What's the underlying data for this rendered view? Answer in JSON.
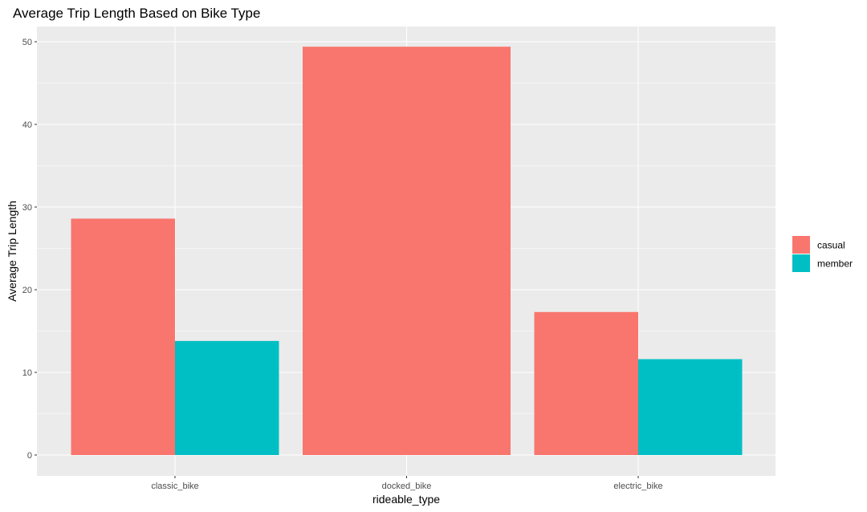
{
  "chart_data": {
    "type": "bar",
    "title": "Average Trip Length Based on Bike Type",
    "xlabel": "rideable_type",
    "ylabel": "Average Trip Length",
    "categories": [
      "classic_bike",
      "docked_bike",
      "electric_bike"
    ],
    "series": [
      {
        "name": "casual",
        "values": [
          28.6,
          49.4,
          17.3
        ],
        "color": "#F8766D"
      },
      {
        "name": "member",
        "values": [
          13.8,
          null,
          11.6
        ],
        "color": "#00BFC4"
      }
    ],
    "ylim": [
      0,
      52
    ],
    "yticks": [
      0,
      10,
      20,
      30,
      40,
      50
    ],
    "grid": true,
    "legend_position": "right",
    "panel_background": "#EBEBEB",
    "grid_color": "#FFFFFF"
  }
}
